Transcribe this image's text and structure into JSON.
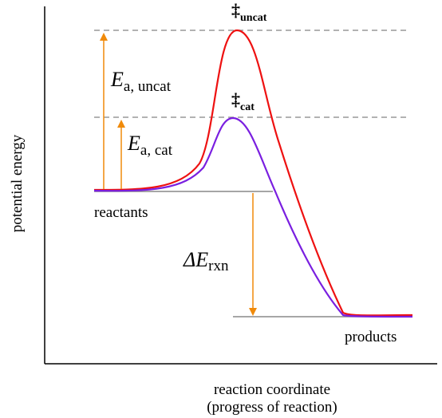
{
  "labels": {
    "y_axis": "potential energy",
    "x_axis_line1": "reaction coordinate",
    "x_axis_line2": "(progress of reaction)",
    "reactants": "reactants",
    "products": "products",
    "ts_uncat_symbol": "‡",
    "ts_uncat_sub": "uncat",
    "ts_cat_symbol": "‡",
    "ts_cat_sub": "cat",
    "ea_uncat_main": "E",
    "ea_uncat_sub": "a, uncat",
    "ea_cat_main": "E",
    "ea_cat_sub": "a, cat",
    "delta_main": "ΔE",
    "delta_sub": "rxn"
  },
  "colors": {
    "uncatalyzed_curve": "#ee1111",
    "catalyzed_curve": "#7a1fe0",
    "arrows": "#f08a0a",
    "dashed_lines": "#999999",
    "level_lines": "#888888",
    "axes": "#000000"
  },
  "curves": [
    "uncatalyzed",
    "catalyzed"
  ]
}
